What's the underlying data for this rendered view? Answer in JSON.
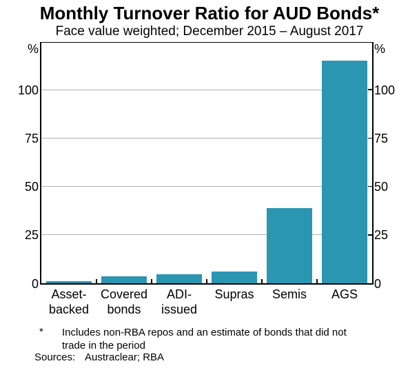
{
  "chart_data": {
    "type": "bar",
    "title": "Monthly Turnover Ratio for AUD Bonds*",
    "subtitle": "Face value weighted; December 2015 – August 2017",
    "unit_label": "%",
    "categories": [
      "Asset-\nbacked",
      "Covered\nbonds",
      "ADI-\nissued",
      "Supras",
      "Semis",
      "AGS"
    ],
    "values": [
      1,
      3.5,
      4.5,
      6,
      39,
      115
    ],
    "yticks": [
      0,
      25,
      50,
      75,
      100
    ],
    "ylim": [
      0,
      124.3
    ],
    "xlabel": "",
    "ylabel": "%",
    "grid": true,
    "legend": "none",
    "bar_color": "#2A96B2",
    "grid_color": "#B0B0B0",
    "axis_color": "#000000"
  },
  "footnote": {
    "marker": "*",
    "text": "Includes non-RBA repos and an estimate of bonds that did not trade in the period"
  },
  "sources": {
    "label": "Sources:",
    "value": "Austraclear; RBA"
  }
}
